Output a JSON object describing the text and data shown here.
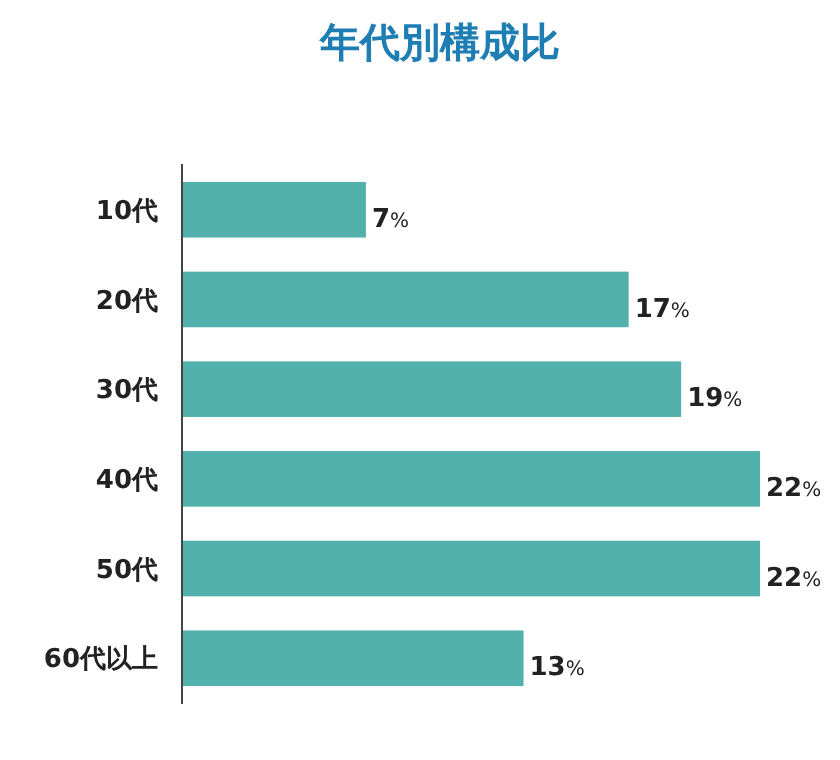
{
  "chart_data": {
    "type": "bar",
    "orientation": "horizontal",
    "title": "年代別構成比",
    "categories": [
      "10代",
      "20代",
      "30代",
      "40代",
      "50代",
      "60代以上"
    ],
    "values": [
      7,
      17,
      19,
      22,
      22,
      13
    ],
    "value_labels": [
      "7%",
      "17%",
      "19%",
      "22%",
      "22%",
      "13%"
    ],
    "color": "#52b1ad"
  }
}
